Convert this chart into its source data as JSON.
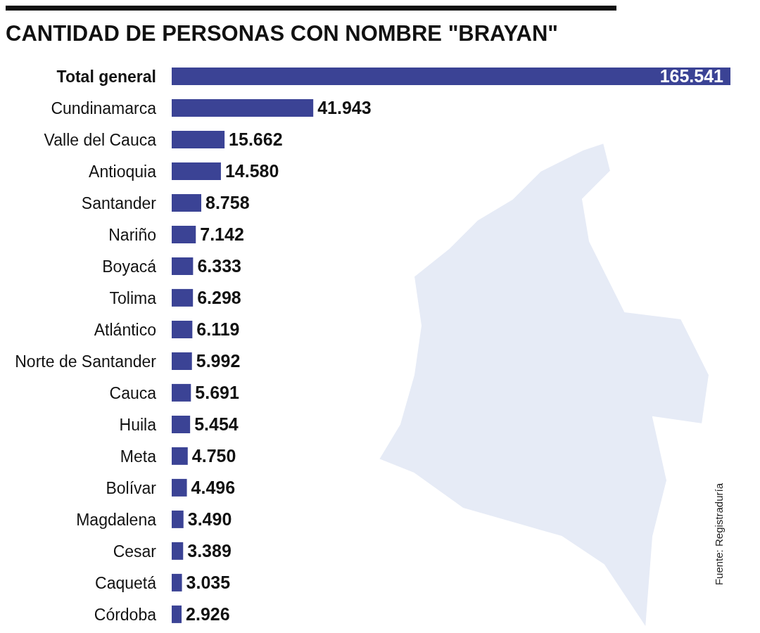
{
  "chart_data": {
    "type": "bar",
    "orientation": "horizontal",
    "title": "CANTIDAD DE PERSONAS CON NOMBRE \"BRAYAN\"",
    "categories": [
      "Total general",
      "Cundinamarca",
      "Valle del Cauca",
      "Antioquia",
      "Santander",
      "Nariño",
      "Boyacá",
      "Tolima",
      "Atlántico",
      "Norte de Santander",
      "Cauca",
      "Huila",
      "Meta",
      "Bolívar",
      "Magdalena",
      "Cesar",
      "Caquetá",
      "Córdoba"
    ],
    "values": [
      165541,
      41943,
      15662,
      14580,
      8758,
      7142,
      6333,
      6298,
      6119,
      5992,
      5691,
      5454,
      4750,
      4496,
      3490,
      3389,
      3035,
      2926
    ],
    "value_labels": [
      "165.541",
      "41.943",
      "15.662",
      "14.580",
      "8.758",
      "7.142",
      "6.333",
      "6.298",
      "6.119",
      "5.992",
      "5.691",
      "5.454",
      "4.750",
      "4.496",
      "3.490",
      "3.389",
      "3.035",
      "2.926"
    ],
    "color": "#3b4395",
    "tick_labels": "y",
    "annotations": [
      "Fuente: Registraduría"
    ]
  }
}
